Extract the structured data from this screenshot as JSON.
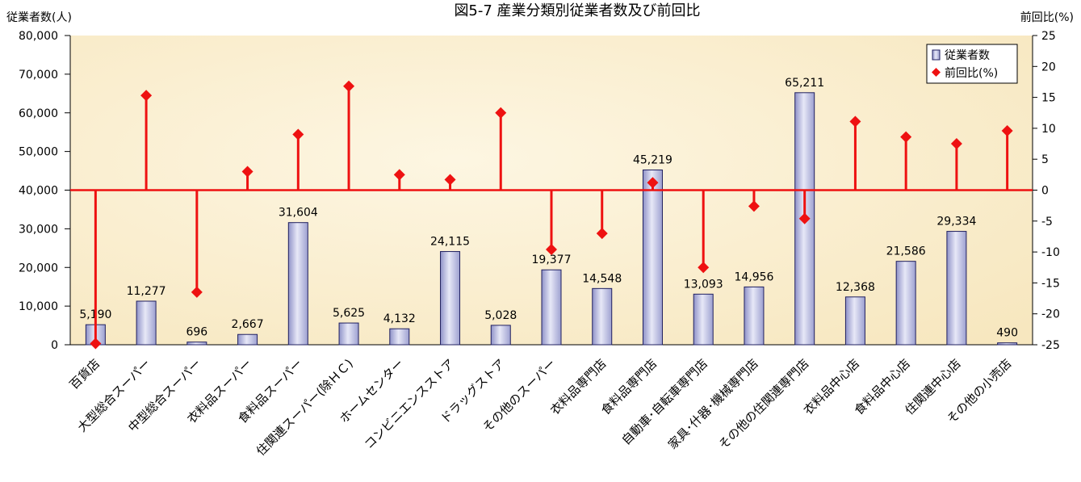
{
  "chart_data": {
    "type": "bar+line",
    "title": "図5-7 産業分類別従業者数及び前回比",
    "ylabel_left": "従業者数(人)",
    "ylabel_right": "前回比(%)",
    "categories": [
      "百貨店",
      "大型総合スーパー",
      "中型総合スーパー",
      "衣料品スーパー",
      "食料品スーパー",
      "住関連スーパー(除HC)",
      "ホームセンター",
      "コンビニエンスストア",
      "ドラッグストア",
      "その他のスーパー",
      "衣料品専門店",
      "食料品専門店",
      "自動車・自転車専門店",
      "家具・什器・機械専門店",
      "その他の住関連専門店",
      "衣料品中心店",
      "食料品中心店",
      "住関連中心店",
      "その他の小売店"
    ],
    "category_lines": [
      [
        "百貨店"
      ],
      [
        "大型総合スーパー"
      ],
      [
        "中型総合スーパー"
      ],
      [
        "衣料品スーパー"
      ],
      [
        "食料品スーパー"
      ],
      [
        "住関連スーパー(除ＨＣ)"
      ],
      [
        "ホームセンター"
      ],
      [
        "コンビニエンスストア"
      ],
      [
        "ドラッグストア"
      ],
      [
        "その他のスーパー"
      ],
      [
        "衣料品専門店"
      ],
      [
        "食料品専門店"
      ],
      [
        "自動車･自転車専門店"
      ],
      [
        "家具･什器･機械専門店"
      ],
      [
        "その他の住関連専門店"
      ],
      [
        "衣料品中心店"
      ],
      [
        "食料品中心店"
      ],
      [
        "住関連中心店"
      ],
      [
        "その他の小売店"
      ]
    ],
    "series": [
      {
        "name": "従業者数",
        "axis": "left",
        "kind": "bar",
        "values": [
          5190,
          11277,
          696,
          2667,
          31604,
          5625,
          4132,
          24115,
          5028,
          19377,
          14548,
          45219,
          13093,
          14956,
          65211,
          12368,
          21586,
          29334,
          490
        ],
        "labels": [
          "5,190",
          "11,277",
          "696",
          "2,667",
          "31,604",
          "5,625",
          "4,132",
          "24,115",
          "5,028",
          "19,377",
          "14,548",
          "45,219",
          "13,093",
          "14,956",
          "65,211",
          "12,368",
          "21,586",
          "29,334",
          "490"
        ]
      },
      {
        "name": "前回比(%)",
        "axis": "right",
        "kind": "drop-line-marker",
        "values": [
          -24.8,
          15.3,
          -16.5,
          3.0,
          9.0,
          16.8,
          2.5,
          1.7,
          12.5,
          -9.6,
          -7.0,
          1.2,
          -12.5,
          -2.6,
          -4.6,
          11.1,
          8.6,
          7.5,
          9.6
        ]
      }
    ],
    "ylim_left": [
      0,
      80000
    ],
    "ylim_right": [
      -25,
      25
    ],
    "yticks_left": [
      "80,000",
      "70,000",
      "60,000",
      "50,000",
      "40,000",
      "30,000",
      "20,000",
      "10,000",
      "0"
    ],
    "yticks_right": [
      "25",
      "20",
      "15",
      "10",
      "5",
      "0",
      "-5",
      "-10",
      "-15",
      "-20",
      "-25"
    ],
    "legend_position": "top-right",
    "grid": false,
    "colors": {
      "plot_bg": "#fbf1d6",
      "bar_fill": "#c9cbe6",
      "bar_stroke": "#202060",
      "line": "#ee1111",
      "marker": "#ee1111"
    }
  }
}
